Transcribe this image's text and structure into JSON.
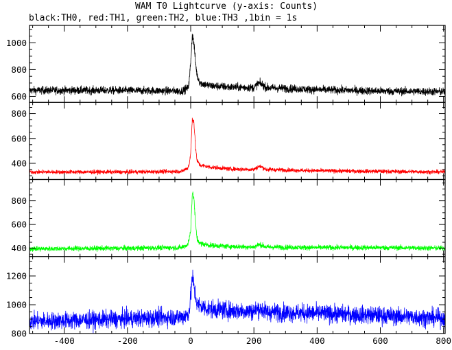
{
  "title": "WAM T0 Lightcurve (y-axis: Counts)",
  "subtitle": "black:TH0, red:TH1, green:TH2, blue:TH3 ,1bin = 1s",
  "chart_data": {
    "type": "line",
    "title": "WAM T0 Lightcurve (y-axis: Counts)",
    "subtitle": "black:TH0, red:TH1, green:TH2, blue:TH3 ,1bin = 1s",
    "xlabel": "",
    "ylabel": "",
    "xlim": [
      -510,
      805
    ],
    "x_ticks": [
      -400,
      -200,
      0,
      200,
      400,
      600,
      800
    ],
    "grid": false,
    "legend": "none",
    "panels": [
      {
        "name": "TH0",
        "color": "#000000",
        "ylim": [
          555,
          1130
        ],
        "y_ticks": [
          600,
          800,
          1000
        ],
        "profile": [
          [
            -510,
            645
          ],
          [
            -300,
            645
          ],
          [
            -100,
            642
          ],
          [
            -30,
            640
          ],
          [
            -10,
            660
          ],
          [
            -5,
            700
          ],
          [
            0,
            860
          ],
          [
            5,
            1060
          ],
          [
            10,
            1000
          ],
          [
            15,
            860
          ],
          [
            20,
            760
          ],
          [
            30,
            700
          ],
          [
            60,
            680
          ],
          [
            120,
            670
          ],
          [
            200,
            665
          ],
          [
            215,
            700
          ],
          [
            225,
            690
          ],
          [
            240,
            665
          ],
          [
            400,
            650
          ],
          [
            600,
            640
          ],
          [
            805,
            635
          ]
        ],
        "noise_amplitude": 26
      },
      {
        "name": "TH1",
        "color": "#ff0000",
        "ylim": [
          270,
          890
        ],
        "y_ticks": [
          400,
          600,
          800
        ],
        "profile": [
          [
            -510,
            330
          ],
          [
            -200,
            330
          ],
          [
            -30,
            335
          ],
          [
            -10,
            360
          ],
          [
            -5,
            390
          ],
          [
            0,
            480
          ],
          [
            5,
            760
          ],
          [
            10,
            740
          ],
          [
            15,
            540
          ],
          [
            20,
            420
          ],
          [
            30,
            385
          ],
          [
            60,
            370
          ],
          [
            120,
            355
          ],
          [
            200,
            350
          ],
          [
            215,
            375
          ],
          [
            225,
            370
          ],
          [
            240,
            350
          ],
          [
            400,
            340
          ],
          [
            600,
            335
          ],
          [
            805,
            330
          ]
        ],
        "noise_amplitude": 20
      },
      {
        "name": "TH2",
        "color": "#00ff00",
        "ylim": [
          330,
          980
        ],
        "y_ticks": [
          400,
          600,
          800
        ],
        "profile": [
          [
            -510,
            395
          ],
          [
            -200,
            400
          ],
          [
            -30,
            405
          ],
          [
            -10,
            430
          ],
          [
            -5,
            470
          ],
          [
            0,
            560
          ],
          [
            5,
            860
          ],
          [
            10,
            830
          ],
          [
            15,
            620
          ],
          [
            20,
            480
          ],
          [
            30,
            440
          ],
          [
            60,
            425
          ],
          [
            120,
            415
          ],
          [
            200,
            410
          ],
          [
            215,
            430
          ],
          [
            225,
            425
          ],
          [
            240,
            410
          ],
          [
            400,
            405
          ],
          [
            600,
            405
          ],
          [
            805,
            400
          ]
        ],
        "noise_amplitude": 24
      },
      {
        "name": "TH3",
        "color": "#0000ff",
        "ylim": [
          800,
          1335
        ],
        "y_ticks": [
          800,
          1000,
          1200
        ],
        "profile": [
          [
            -510,
            885
          ],
          [
            -300,
            895
          ],
          [
            -100,
            910
          ],
          [
            -30,
            915
          ],
          [
            -10,
            930
          ],
          [
            -5,
            960
          ],
          [
            0,
            1050
          ],
          [
            5,
            1200
          ],
          [
            10,
            1130
          ],
          [
            15,
            1060
          ],
          [
            20,
            1010
          ],
          [
            30,
            990
          ],
          [
            60,
            970
          ],
          [
            120,
            960
          ],
          [
            200,
            955
          ],
          [
            215,
            975
          ],
          [
            225,
            965
          ],
          [
            240,
            950
          ],
          [
            400,
            940
          ],
          [
            600,
            925
          ],
          [
            805,
            905
          ]
        ],
        "noise_amplitude": 45
      }
    ]
  }
}
